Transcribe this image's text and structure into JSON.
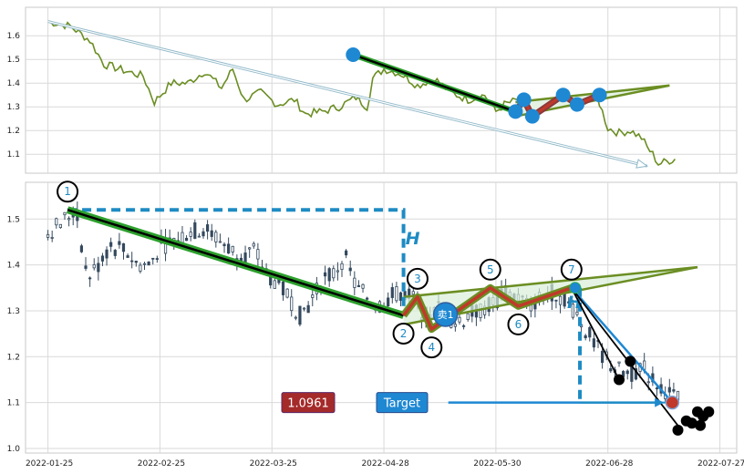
{
  "chart_data": {
    "type": "line",
    "x_ticks": [
      "2022-01-25",
      "2022-02-25",
      "2022-03-25",
      "2022-04-28",
      "2022-05-30",
      "2022-06-28",
      "2022-07-27"
    ],
    "top_panel": {
      "type": "line",
      "ylim": [
        1.02,
        1.72
      ],
      "yticks": [
        "1.1",
        "1.2",
        "1.3",
        "1.4",
        "1.5",
        "1.6"
      ],
      "line_color": "#6b8e23",
      "series_keypoints": [
        {
          "x": 0,
          "y": 1.66
        },
        {
          "x": 8,
          "y": 1.64
        },
        {
          "x": 15,
          "y": 1.58
        },
        {
          "x": 20,
          "y": 1.48
        },
        {
          "x": 28,
          "y": 1.45
        },
        {
          "x": 34,
          "y": 1.43
        },
        {
          "x": 38,
          "y": 1.32
        },
        {
          "x": 44,
          "y": 1.4
        },
        {
          "x": 50,
          "y": 1.4
        },
        {
          "x": 56,
          "y": 1.45
        },
        {
          "x": 62,
          "y": 1.38
        },
        {
          "x": 66,
          "y": 1.46
        },
        {
          "x": 70,
          "y": 1.33
        },
        {
          "x": 76,
          "y": 1.36
        },
        {
          "x": 82,
          "y": 1.31
        },
        {
          "x": 88,
          "y": 1.33
        },
        {
          "x": 92,
          "y": 1.27
        },
        {
          "x": 98,
          "y": 1.28
        },
        {
          "x": 104,
          "y": 1.3
        },
        {
          "x": 110,
          "y": 1.34
        },
        {
          "x": 114,
          "y": 1.3
        },
        {
          "x": 116,
          "y": 1.42
        },
        {
          "x": 120,
          "y": 1.46
        },
        {
          "x": 126,
          "y": 1.44
        },
        {
          "x": 132,
          "y": 1.39
        },
        {
          "x": 138,
          "y": 1.42
        },
        {
          "x": 144,
          "y": 1.36
        },
        {
          "x": 150,
          "y": 1.33
        },
        {
          "x": 156,
          "y": 1.35
        },
        {
          "x": 160,
          "y": 1.28
        },
        {
          "x": 163,
          "y": 1.31
        },
        {
          "x": 168,
          "y": 1.33
        },
        {
          "x": 172,
          "y": 1.27
        },
        {
          "x": 178,
          "y": 1.3
        },
        {
          "x": 184,
          "y": 1.34
        },
        {
          "x": 188,
          "y": 1.32
        },
        {
          "x": 192,
          "y": 1.33
        },
        {
          "x": 196,
          "y": 1.35
        },
        {
          "x": 198,
          "y": 1.28
        },
        {
          "x": 200,
          "y": 1.21
        },
        {
          "x": 204,
          "y": 1.19
        },
        {
          "x": 208,
          "y": 1.2
        },
        {
          "x": 212,
          "y": 1.17
        },
        {
          "x": 214,
          "y": 1.13
        },
        {
          "x": 216,
          "y": 1.1
        },
        {
          "x": 218,
          "y": 1.06
        },
        {
          "x": 221,
          "y": 1.07
        },
        {
          "x": 224,
          "y": 1.08
        }
      ],
      "trend_arrow": [
        {
          "x": 0,
          "y": 1.66
        },
        {
          "x": 214,
          "y": 1.05
        }
      ],
      "black_line": [
        {
          "x": 109,
          "y": 1.52
        },
        {
          "x": 167,
          "y": 1.28
        }
      ],
      "red_zigzag": [
        {
          "x": 167,
          "y": 1.28
        },
        {
          "x": 170,
          "y": 1.33
        },
        {
          "x": 173,
          "y": 1.26
        },
        {
          "x": 184,
          "y": 1.35
        },
        {
          "x": 189,
          "y": 1.31
        },
        {
          "x": 197,
          "y": 1.35
        }
      ],
      "wedge_upper": [
        {
          "x": 167,
          "y": 1.32
        },
        {
          "x": 222,
          "y": 1.39
        }
      ],
      "wedge_lower": [
        {
          "x": 167,
          "y": 1.26
        },
        {
          "x": 222,
          "y": 1.39
        }
      ],
      "blue_points": [
        {
          "x": 109,
          "y": 1.52
        },
        {
          "x": 167,
          "y": 1.28
        },
        {
          "x": 170,
          "y": 1.33
        },
        {
          "x": 173,
          "y": 1.26
        },
        {
          "x": 184,
          "y": 1.35
        },
        {
          "x": 189,
          "y": 1.31
        },
        {
          "x": 197,
          "y": 1.35
        }
      ]
    },
    "bottom_panel": {
      "type": "candlestick",
      "ylim": [
        0.99,
        1.58
      ],
      "yticks": [
        "1.0",
        "1.1",
        "1.2",
        "1.3",
        "1.4",
        "1.5"
      ],
      "candle_color": "#34495e",
      "candles_keypoints": [
        {
          "x": 0,
          "y": 1.47
        },
        {
          "x": 4,
          "y": 1.49
        },
        {
          "x": 10,
          "y": 1.52
        },
        {
          "x": 14,
          "y": 1.37
        },
        {
          "x": 18,
          "y": 1.4
        },
        {
          "x": 22,
          "y": 1.44
        },
        {
          "x": 28,
          "y": 1.43
        },
        {
          "x": 32,
          "y": 1.4
        },
        {
          "x": 36,
          "y": 1.4
        },
        {
          "x": 40,
          "y": 1.44
        },
        {
          "x": 44,
          "y": 1.45
        },
        {
          "x": 50,
          "y": 1.47
        },
        {
          "x": 56,
          "y": 1.48
        },
        {
          "x": 62,
          "y": 1.45
        },
        {
          "x": 68,
          "y": 1.42
        },
        {
          "x": 74,
          "y": 1.43
        },
        {
          "x": 78,
          "y": 1.38
        },
        {
          "x": 82,
          "y": 1.36
        },
        {
          "x": 86,
          "y": 1.33
        },
        {
          "x": 90,
          "y": 1.29
        },
        {
          "x": 94,
          "y": 1.32
        },
        {
          "x": 98,
          "y": 1.37
        },
        {
          "x": 102,
          "y": 1.38
        },
        {
          "x": 106,
          "y": 1.42
        },
        {
          "x": 110,
          "y": 1.35
        },
        {
          "x": 114,
          "y": 1.33
        },
        {
          "x": 118,
          "y": 1.31
        },
        {
          "x": 122,
          "y": 1.33
        },
        {
          "x": 126,
          "y": 1.34
        },
        {
          "x": 130,
          "y": 1.33
        },
        {
          "x": 136,
          "y": 1.28
        },
        {
          "x": 140,
          "y": 1.31
        },
        {
          "x": 146,
          "y": 1.27
        },
        {
          "x": 150,
          "y": 1.29
        },
        {
          "x": 154,
          "y": 1.3
        },
        {
          "x": 160,
          "y": 1.32
        },
        {
          "x": 164,
          "y": 1.34
        },
        {
          "x": 168,
          "y": 1.33
        },
        {
          "x": 172,
          "y": 1.31
        },
        {
          "x": 176,
          "y": 1.33
        },
        {
          "x": 180,
          "y": 1.34
        },
        {
          "x": 184,
          "y": 1.33
        },
        {
          "x": 188,
          "y": 1.3
        },
        {
          "x": 192,
          "y": 1.26
        },
        {
          "x": 196,
          "y": 1.22
        },
        {
          "x": 200,
          "y": 1.19
        },
        {
          "x": 204,
          "y": 1.17
        },
        {
          "x": 208,
          "y": 1.16
        },
        {
          "x": 212,
          "y": 1.18
        },
        {
          "x": 216,
          "y": 1.15
        },
        {
          "x": 220,
          "y": 1.13
        },
        {
          "x": 224,
          "y": 1.11
        },
        {
          "x": 226,
          "y": 1.1
        }
      ],
      "pattern_points": [
        {
          "label": "1",
          "x": 7,
          "y": 1.52
        },
        {
          "label": "2",
          "x": 127,
          "y": 1.29
        },
        {
          "label": "3",
          "x": 132,
          "y": 1.33
        },
        {
          "label": "4",
          "x": 137,
          "y": 1.26
        },
        {
          "label": "5",
          "x": 158,
          "y": 1.35
        },
        {
          "label": "6",
          "x": 168,
          "y": 1.31
        },
        {
          "label": "7",
          "x": 187,
          "y": 1.35
        }
      ],
      "wedge_upper": [
        {
          "x": 127,
          "y": 1.33
        },
        {
          "x": 232,
          "y": 1.395
        }
      ],
      "wedge_lower": [
        {
          "x": 127,
          "y": 1.27
        },
        {
          "x": 232,
          "y": 1.395
        }
      ],
      "h_top_level": 1.52,
      "h_bottom_level": 1.29,
      "h_right_x": 127,
      "h2_top_level": 1.35,
      "h2_bottom_level": 1.1,
      "h2_x": 190,
      "projection_lines": [
        [
          {
            "x": 187,
            "y": 1.35
          },
          {
            "x": 223,
            "y": 1.1
          }
        ],
        [
          {
            "x": 187,
            "y": 1.35
          },
          {
            "x": 225,
            "y": 1.05
          }
        ],
        [
          {
            "x": 187,
            "y": 1.35
          },
          {
            "x": 204,
            "y": 1.15
          }
        ]
      ],
      "black_dots": [
        {
          "x": 204,
          "y": 1.15
        },
        {
          "x": 208,
          "y": 1.19
        },
        {
          "x": 225,
          "y": 1.04
        },
        {
          "x": 228,
          "y": 1.06
        },
        {
          "x": 230,
          "y": 1.055
        },
        {
          "x": 232,
          "y": 1.08
        },
        {
          "x": 234,
          "y": 1.07
        },
        {
          "x": 236,
          "y": 1.08
        },
        {
          "x": 233,
          "y": 1.05
        }
      ],
      "target_dot": {
        "x": 223,
        "y": 1.1
      },
      "sell_signal": {
        "label": "卖1",
        "x": 142,
        "y": 1.29
      },
      "target_label": "Target",
      "target_value_label": "1.0961",
      "target_arrow": {
        "from_x": 143,
        "to_x": 220,
        "y": 1.1
      },
      "h_label": "H"
    },
    "colors": {
      "green": "#2ca02c",
      "olive": "#6b8e23",
      "black": "#000000",
      "red": "#c0392b",
      "brown": "#8b3a3a",
      "blue": "#1e88d3",
      "dashed_blue": "#1e8bc3",
      "target_box_red": "#a52a2a",
      "target_box_blue": "#1e88d3",
      "wedge_fill": "#d9eed9"
    }
  }
}
